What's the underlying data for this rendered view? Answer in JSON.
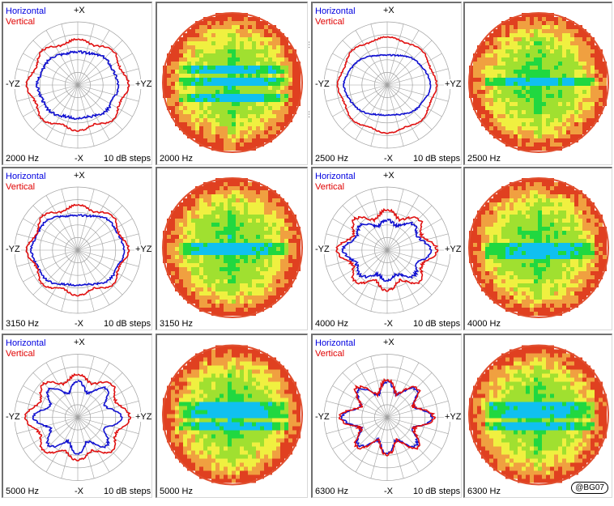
{
  "legend": {
    "horizontal": "Horizontal",
    "vertical": "Vertical"
  },
  "axes": {
    "top": "+X",
    "bottom": "-X",
    "left": "-YZ",
    "right": "+YZ"
  },
  "steps_label": "10 dB steps",
  "copyright": "@BG07",
  "colors": {
    "horizontal": "#1010d0",
    "vertical": "#e01010",
    "grid": "#a0a0a0"
  },
  "chart_data": [
    {
      "type": "polar",
      "frequency": "2000 Hz",
      "scale": "10 dB steps",
      "series": [
        {
          "name": "Horizontal",
          "shape": {
            "a": 0.64,
            "b": 0.56,
            "c1": -0.1,
            "c2": 0.02,
            "c3": 0.0,
            "c4": 0.02,
            "noise": 0.04
          }
        },
        {
          "name": "Vertical",
          "shape": {
            "a": 0.8,
            "b": 0.7,
            "c1": -0.05,
            "c2": 0.04,
            "c3": 0.0,
            "c4": 0.05,
            "noise": 0.03
          }
        }
      ]
    },
    {
      "type": "heatmap",
      "frequency": "2000 Hz",
      "pattern": {
        "seed": 3,
        "bands": [
          0.0,
          0.2,
          -0.2
        ]
      }
    },
    {
      "type": "polar",
      "frequency": "2500 Hz",
      "scale": "10 dB steps",
      "series": [
        {
          "name": "Horizontal",
          "shape": {
            "a": 0.72,
            "b": 0.5,
            "c1": -0.12,
            "c2": 0.06,
            "c3": 0.0,
            "c4": 0.01,
            "noise": 0.02
          }
        },
        {
          "name": "Vertical",
          "shape": {
            "a": 0.8,
            "b": 0.72,
            "c1": -0.02,
            "c2": 0.05,
            "c3": 0.0,
            "c4": 0.03,
            "noise": 0.02
          }
        }
      ]
    },
    {
      "type": "heatmap",
      "frequency": "2500 Hz",
      "pattern": {
        "seed": 7,
        "bands": [
          0.0
        ]
      }
    },
    {
      "type": "polar",
      "frequency": "3150 Hz",
      "scale": "10 dB steps",
      "series": [
        {
          "name": "Horizontal",
          "shape": {
            "a": 0.78,
            "b": 0.6,
            "c1": -0.18,
            "c2": 0.08,
            "c3": 0.0,
            "c4": 0.02,
            "noise": 0.03
          }
        },
        {
          "name": "Vertical",
          "shape": {
            "a": 0.8,
            "b": 0.68,
            "c1": -0.05,
            "c2": 0.05,
            "c3": 0.0,
            "c4": 0.06,
            "noise": 0.03
          }
        }
      ]
    },
    {
      "type": "heatmap",
      "frequency": "3150 Hz",
      "pattern": {
        "seed": 11,
        "bands": [
          0.0,
          0.08
        ]
      }
    },
    {
      "type": "polar",
      "frequency": "4000 Hz",
      "scale": "10 dB steps",
      "series": [
        {
          "name": "Horizontal",
          "shape": {
            "a": 0.64,
            "b": 0.46,
            "c1": -0.08,
            "c2": 0.02,
            "c3": 0.0,
            "c4": 0.1,
            "noise": 0.05
          }
        },
        {
          "name": "Vertical",
          "shape": {
            "a": 0.74,
            "b": 0.56,
            "c1": -0.02,
            "c2": 0.05,
            "c3": 0.0,
            "c4": 0.12,
            "noise": 0.05
          }
        }
      ]
    },
    {
      "type": "heatmap",
      "frequency": "4000 Hz",
      "pattern": {
        "seed": 17,
        "bands": [
          0.0,
          0.12
        ]
      }
    },
    {
      "type": "polar",
      "frequency": "5000 Hz",
      "scale": "10 dB steps",
      "series": [
        {
          "name": "Horizontal",
          "shape": {
            "a": 0.6,
            "b": 0.5,
            "c1": -0.05,
            "c2": 0.02,
            "c3": 0.0,
            "c4": 0.18,
            "noise": 0.04
          }
        },
        {
          "name": "Vertical",
          "shape": {
            "a": 0.78,
            "b": 0.62,
            "c1": -0.04,
            "c2": 0.04,
            "c3": 0.0,
            "c4": 0.1,
            "noise": 0.04
          }
        }
      ]
    },
    {
      "type": "heatmap",
      "frequency": "5000 Hz",
      "pattern": {
        "seed": 23,
        "bands": [
          0.0,
          0.15,
          -0.15
        ]
      }
    },
    {
      "type": "polar",
      "frequency": "6300 Hz",
      "scale": "10 dB steps",
      "series": [
        {
          "name": "Horizontal",
          "shape": {
            "a": 0.6,
            "b": 0.48,
            "c1": -0.04,
            "c2": 0.02,
            "c3": 0.0,
            "c4": 0.2,
            "noise": 0.05
          }
        },
        {
          "name": "Vertical",
          "shape": {
            "a": 0.62,
            "b": 0.5,
            "c1": -0.04,
            "c2": 0.02,
            "c3": 0.0,
            "c4": 0.22,
            "noise": 0.06
          }
        }
      ]
    },
    {
      "type": "heatmap",
      "frequency": "6300 Hz",
      "pattern": {
        "seed": 29,
        "bands": [
          0.0,
          0.15,
          -0.15
        ]
      }
    }
  ]
}
